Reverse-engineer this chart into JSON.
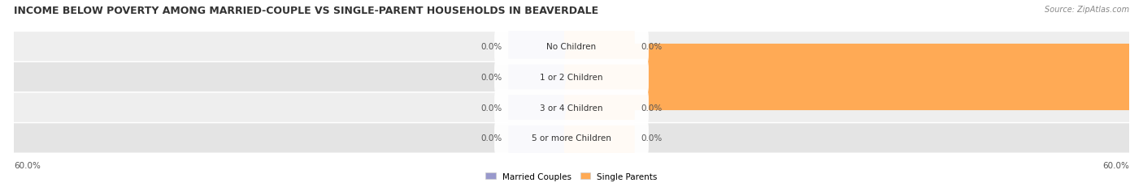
{
  "title": "INCOME BELOW POVERTY AMONG MARRIED-COUPLE VS SINGLE-PARENT HOUSEHOLDS IN BEAVERDALE",
  "source": "Source: ZipAtlas.com",
  "categories": [
    "No Children",
    "1 or 2 Children",
    "3 or 4 Children",
    "5 or more Children"
  ],
  "married_values": [
    0.0,
    0.0,
    0.0,
    0.0
  ],
  "single_values": [
    0.0,
    60.0,
    0.0,
    0.0
  ],
  "married_color": "#9999cc",
  "single_color": "#ffaa55",
  "row_bg_colors": [
    "#eeeeee",
    "#e4e4e4",
    "#eeeeee",
    "#e4e4e4"
  ],
  "xmin": -60.0,
  "xmax": 60.0,
  "min_bar_stub": 6.0,
  "axis_label_left": "60.0%",
  "axis_label_right": "60.0%",
  "title_fontsize": 9.0,
  "label_fontsize": 7.5,
  "category_fontsize": 7.5,
  "value_fontsize": 7.5,
  "source_fontsize": 7.0,
  "legend_labels": [
    "Married Couples",
    "Single Parents"
  ],
  "figsize": [
    14.06,
    2.32
  ],
  "dpi": 100
}
